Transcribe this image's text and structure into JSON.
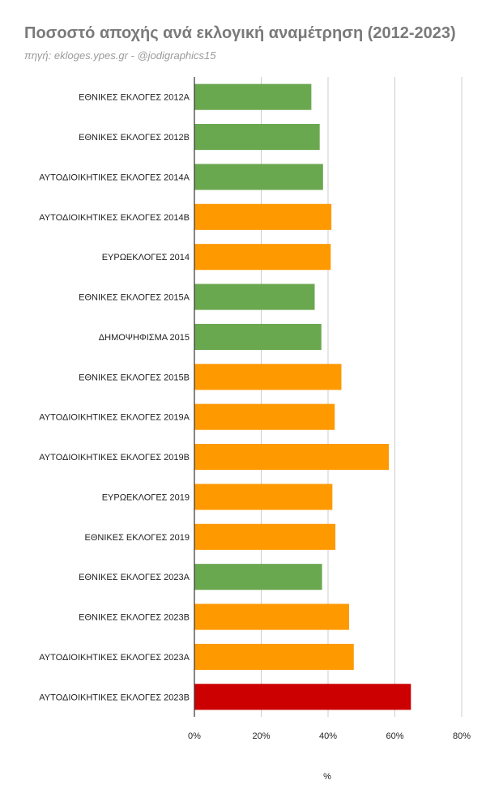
{
  "title": "Ποσοστό αποχής ανά εκλογική αναμέτρηση (2012-2023)",
  "subtitle": "πηγή: ekloges.ypes.gr - @jodigraphics15",
  "colors": {
    "green": "#6aa84f",
    "orange": "#ff9900",
    "red": "#cc0000",
    "grid": "#cccccc",
    "axis": "#333333"
  },
  "chart_data": {
    "type": "bar",
    "orientation": "horizontal",
    "title": "Ποσοστό αποχής ανά εκλογική αναμέτρηση (2012-2023)",
    "xlabel": "%",
    "ylabel": "",
    "xlim": [
      0,
      80
    ],
    "ticks": [
      "0%",
      "20%",
      "40%",
      "60%",
      "80%"
    ],
    "tick_values": [
      0,
      20,
      40,
      60,
      80
    ],
    "grid": true,
    "categories": [
      "ΕΘΝΙΚΕΣ ΕΚΛΟΓΕΣ 2012Α",
      "ΕΘΝΙΚΕΣ ΕΚΛΟΓΕΣ 2012Β",
      "ΑΥΤΟΔΙΟΙΚΗΤΙΚΕΣ ΕΚΛΟΓΕΣ 2014Α",
      "ΑΥΤΟΔΙΟΙΚΗΤΙΚΕΣ ΕΚΛΟΓΕΣ 2014Β",
      "ΕΥΡΩΕΚΛΟΓΕΣ 2014",
      "ΕΘΝΙΚΕΣ ΕΚΛΟΓΕΣ 2015Α",
      "ΔΗΜΟΨΗΦΙΣΜΑ 2015",
      "ΕΘΝΙΚΕΣ ΕΚΛΟΓΕΣ 2015Β",
      "ΑΥΤΟΔΙΟΙΚΗΤΙΚΕΣ ΕΚΛΟΓΕΣ 2019Α",
      "ΑΥΤΟΔΙΟΙΚΗΤΙΚΕΣ ΕΚΛΟΓΕΣ 2019Β",
      "ΕΥΡΩΕΚΛΟΓΕΣ 2019",
      "ΕΘΝΙΚΕΣ ΕΚΛΟΓΕΣ 2019",
      "ΕΘΝΙΚΕΣ ΕΚΛΟΓΕΣ 2023Α",
      "ΕΘΝΙΚΕΣ ΕΚΛΟΓΕΣ 2023Β",
      "ΑΥΤΟΔΙΟΙΚΗΤΙΚΕΣ ΕΚΛΟΓΕΣ 2023Α",
      "ΑΥΤΟΔΙΟΙΚΗΤΙΚΕΣ ΕΚΛΟΓΕΣ 2023Β"
    ],
    "values": [
      35.0,
      37.5,
      38.5,
      41.0,
      40.8,
      36.0,
      38.0,
      44.0,
      42.0,
      58.2,
      41.3,
      42.2,
      38.2,
      46.3,
      47.7,
      64.8
    ],
    "bar_colors": [
      "green",
      "green",
      "green",
      "orange",
      "orange",
      "green",
      "green",
      "orange",
      "orange",
      "orange",
      "orange",
      "orange",
      "green",
      "orange",
      "orange",
      "red"
    ]
  }
}
